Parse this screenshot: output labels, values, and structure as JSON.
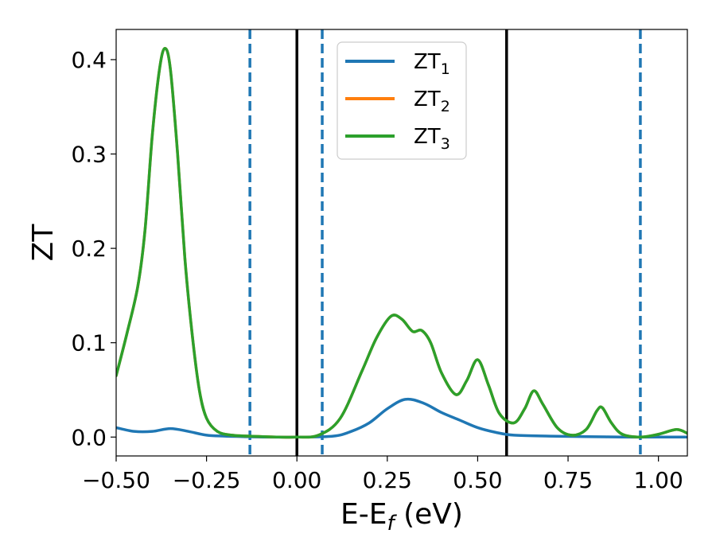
{
  "chart_data": {
    "type": "line",
    "xlabel": {
      "main": "E-E",
      "sub": "f",
      "unit": " (eV)"
    },
    "ylabel": "ZT",
    "xlim": [
      -0.5,
      1.08
    ],
    "ylim": [
      -0.02,
      0.432
    ],
    "xticks": [
      -0.5,
      -0.25,
      0.0,
      0.25,
      0.5,
      0.75,
      1.0
    ],
    "xtick_labels": [
      "−0.50",
      "−0.25",
      "0.00",
      "0.25",
      "0.50",
      "0.75",
      "1.00"
    ],
    "yticks": [
      0.0,
      0.1,
      0.2,
      0.3,
      0.4
    ],
    "ytick_labels": [
      "0.0",
      "0.1",
      "0.2",
      "0.3",
      "0.4"
    ],
    "legend_position": "top-center",
    "series": [
      {
        "name": "ZT",
        "name_sub": "1",
        "color": "#1f77b4",
        "x": [
          -0.5,
          -0.45,
          -0.4,
          -0.35,
          -0.3,
          -0.25,
          -0.2,
          -0.15,
          -0.1,
          0.0,
          0.1,
          0.15,
          0.2,
          0.25,
          0.3,
          0.35,
          0.4,
          0.45,
          0.5,
          0.55,
          0.6,
          0.7,
          0.8,
          0.9,
          1.0,
          1.08
        ],
        "y": [
          0.01,
          0.006,
          0.006,
          0.009,
          0.006,
          0.002,
          0.001,
          0.0005,
          0.0,
          0.0,
          0.001,
          0.006,
          0.015,
          0.03,
          0.04,
          0.036,
          0.026,
          0.018,
          0.01,
          0.005,
          0.002,
          0.001,
          0.0005,
          0.0,
          0.0,
          0.0
        ]
      },
      {
        "name": "ZT",
        "name_sub": "2",
        "color": "#ff7f0e",
        "x": [
          -0.5,
          -0.47,
          -0.44,
          -0.42,
          -0.4,
          -0.38,
          -0.365,
          -0.35,
          -0.33,
          -0.31,
          -0.29,
          -0.27,
          -0.25,
          -0.22,
          -0.18,
          -0.13,
          -0.05,
          0.0,
          0.06,
          0.12,
          0.18,
          0.22,
          0.26,
          0.29,
          0.32,
          0.345,
          0.37,
          0.4,
          0.44,
          0.47,
          0.5,
          0.53,
          0.56,
          0.6,
          0.63,
          0.655,
          0.68,
          0.72,
          0.76,
          0.8,
          0.83,
          0.845,
          0.87,
          0.9,
          0.95,
          1.0,
          1.05,
          1.08
        ],
        "y": [
          0.065,
          0.11,
          0.16,
          0.22,
          0.32,
          0.39,
          0.412,
          0.39,
          0.3,
          0.19,
          0.11,
          0.05,
          0.02,
          0.006,
          0.002,
          0.001,
          0.0,
          0.0,
          0.002,
          0.02,
          0.07,
          0.105,
          0.128,
          0.125,
          0.112,
          0.113,
          0.1,
          0.068,
          0.045,
          0.06,
          0.082,
          0.055,
          0.025,
          0.015,
          0.03,
          0.049,
          0.035,
          0.01,
          0.002,
          0.008,
          0.028,
          0.031,
          0.015,
          0.003,
          0.0,
          0.003,
          0.008,
          0.004
        ]
      },
      {
        "name": "ZT",
        "name_sub": "3",
        "color": "#2ca02c",
        "x": [
          -0.5,
          -0.47,
          -0.44,
          -0.42,
          -0.4,
          -0.38,
          -0.365,
          -0.35,
          -0.33,
          -0.31,
          -0.29,
          -0.27,
          -0.25,
          -0.22,
          -0.18,
          -0.13,
          -0.05,
          0.0,
          0.06,
          0.12,
          0.18,
          0.22,
          0.26,
          0.29,
          0.32,
          0.345,
          0.37,
          0.4,
          0.44,
          0.47,
          0.5,
          0.53,
          0.56,
          0.6,
          0.63,
          0.655,
          0.68,
          0.72,
          0.76,
          0.8,
          0.83,
          0.845,
          0.87,
          0.9,
          0.95,
          1.0,
          1.05,
          1.08
        ],
        "y": [
          0.065,
          0.11,
          0.16,
          0.22,
          0.32,
          0.39,
          0.412,
          0.39,
          0.3,
          0.19,
          0.11,
          0.05,
          0.02,
          0.006,
          0.002,
          0.001,
          0.0,
          0.0,
          0.002,
          0.02,
          0.07,
          0.105,
          0.128,
          0.125,
          0.112,
          0.113,
          0.1,
          0.068,
          0.045,
          0.06,
          0.082,
          0.055,
          0.025,
          0.015,
          0.03,
          0.049,
          0.035,
          0.01,
          0.002,
          0.008,
          0.028,
          0.031,
          0.015,
          0.003,
          0.0,
          0.003,
          0.008,
          0.004
        ]
      }
    ],
    "vlines": [
      {
        "x": -0.13,
        "style": "dashed",
        "color": "#1f77b4"
      },
      {
        "x": 0.07,
        "style": "dashed",
        "color": "#1f77b4"
      },
      {
        "x": 0.95,
        "style": "dashed",
        "color": "#1f77b4"
      },
      {
        "x": 0.0,
        "style": "solid",
        "color": "#000000"
      },
      {
        "x": 0.58,
        "style": "solid",
        "color": "#000000"
      }
    ]
  }
}
